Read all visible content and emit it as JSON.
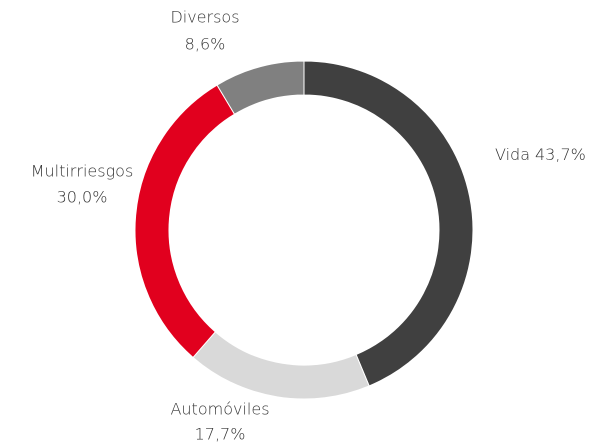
{
  "chart_data": {
    "type": "pie",
    "categories": [
      "Vida",
      "Automóviles",
      "Multirriesgos",
      "Diversos"
    ],
    "values": [
      43.7,
      17.7,
      30.0,
      8.6
    ],
    "value_labels": [
      "43,7%",
      "17,7%",
      "30,0%",
      "8,6%"
    ],
    "colors": [
      "#404040",
      "#d9d9d9",
      "#e1001e",
      "#808080"
    ],
    "donut": true
  }
}
